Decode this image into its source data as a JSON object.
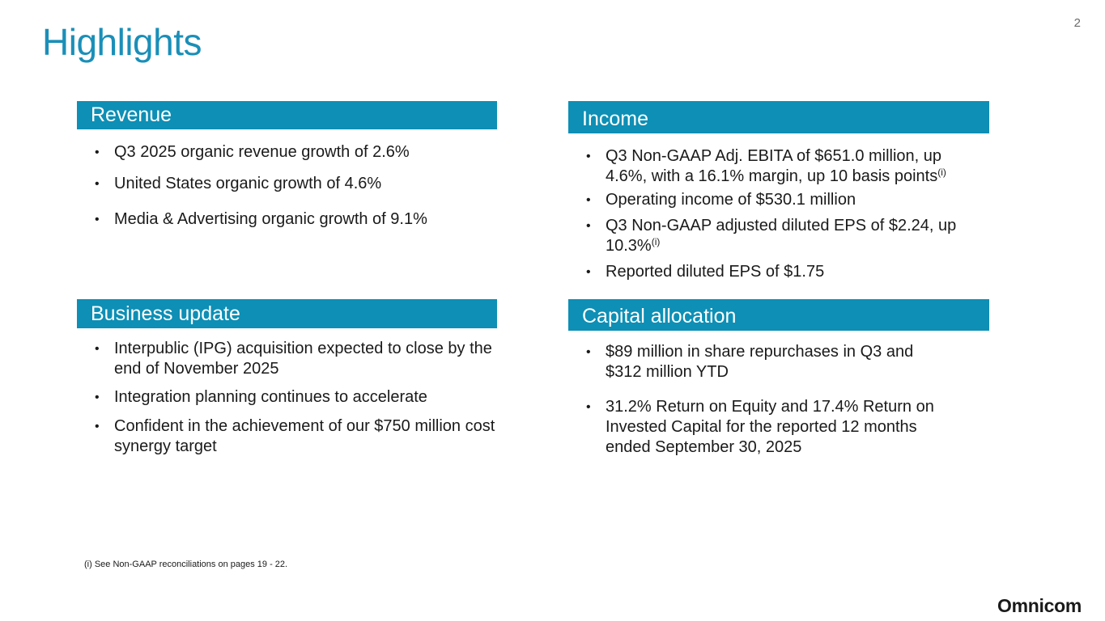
{
  "page": {
    "title": "Highlights",
    "number": "2"
  },
  "revenue": {
    "header": "Revenue",
    "bullets": [
      "Q3 2025 organic revenue growth of 2.6%",
      "United States organic growth of 4.6%",
      "Media & Advertising organic growth of 9.1%"
    ]
  },
  "income": {
    "header": "Income",
    "bullets": [
      "Q3 Non-GAAP Adj. EBITA of $651.0 million, up 4.6%, with a 16.1% margin, up 10 basis points",
      "Operating income of $530.1 million",
      "Q3 Non-GAAP adjusted diluted EPS of $2.24, up 10.3%",
      "Reported diluted EPS of $1.75"
    ],
    "footnote_marker": "(i)"
  },
  "business_update": {
    "header": "Business update",
    "bullets": [
      "Interpublic (IPG) acquisition expected to close by the end of November 2025",
      "Integration planning continues to accelerate",
      "Confident in the achievement of our $750 million cost synergy target"
    ]
  },
  "capital_allocation": {
    "header": "Capital allocation",
    "bullets": [
      "$89 million in share repurchases in Q3 and $312 million YTD",
      "31.2% Return on Equity and 17.4% Return on Invested Capital for the reported 12 months ended September 30, 2025"
    ]
  },
  "footnote": "(i)  See Non-GAAP reconciliations on pages 19 - 22.",
  "logo": "Omnicom",
  "bullet_glyph": "•",
  "colors": {
    "title": "#1a8fb8",
    "header_bg": "#0e8fb5",
    "header_text": "#ffffff"
  }
}
